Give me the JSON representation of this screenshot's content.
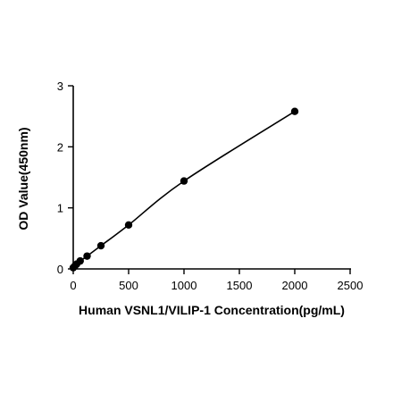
{
  "chart_data": {
    "type": "scatter",
    "title": "",
    "xlabel": "Human VSNL1/VILIP-1 Concentration(pg/mL)",
    "ylabel": "OD Value(450nm)",
    "xlim": [
      0,
      2500
    ],
    "ylim": [
      0,
      3
    ],
    "xticks": [
      0,
      500,
      1000,
      1500,
      2000,
      2500
    ],
    "yticks": [
      0,
      1,
      2,
      3
    ],
    "grid": false,
    "legend": "none",
    "fit_line": true,
    "series": [
      {
        "x": [
          0,
          15.6,
          31.25,
          62.5,
          125,
          250,
          500,
          1000,
          2000
        ],
        "y": [
          0.02,
          0.05,
          0.08,
          0.13,
          0.21,
          0.38,
          0.72,
          1.44,
          2.58
        ]
      }
    ],
    "colors": {
      "marker": "#000000",
      "line": "#000000",
      "axis": "#000000"
    }
  }
}
